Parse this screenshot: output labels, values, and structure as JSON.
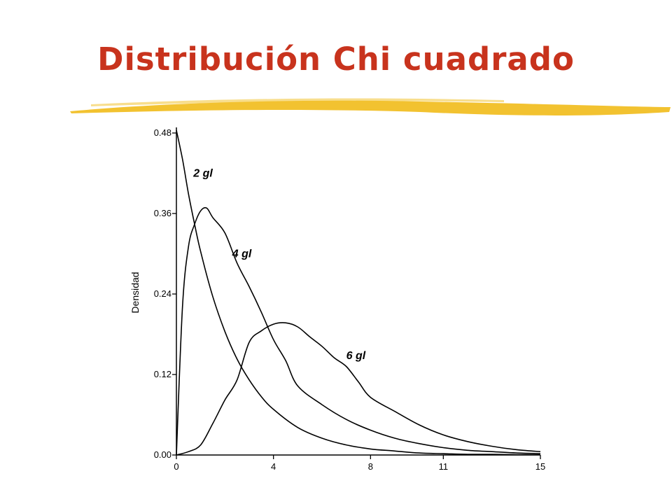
{
  "slide": {
    "title": "Distribución Chi cuadrado",
    "title_color": "#c8331d",
    "underline_color": "#f2c230"
  },
  "chart_data": {
    "type": "line",
    "title": "",
    "xlabel": "",
    "ylabel": "Densidad",
    "xlim": [
      0,
      15
    ],
    "ylim": [
      0,
      0.48
    ],
    "xticks": [
      "0",
      "4",
      "8",
      "11",
      "15"
    ],
    "yticks": [
      "0.00",
      "0.12",
      "0.24",
      "0.36",
      "0.48"
    ],
    "grid": false,
    "legend": "none",
    "series": [
      {
        "name": "2 gl",
        "x": [
          0,
          0.25,
          0.5,
          0.75,
          1,
          1.5,
          2,
          2.5,
          3,
          3.5,
          4,
          5,
          6,
          7,
          8,
          9,
          10,
          11,
          12,
          13,
          14,
          15
        ],
        "y": [
          0.5,
          0.441,
          0.389,
          0.344,
          0.303,
          0.236,
          0.184,
          0.143,
          0.112,
          0.087,
          0.068,
          0.041,
          0.025,
          0.015,
          0.009,
          0.006,
          0.003,
          0.002,
          0.001,
          0.001,
          0.0005,
          0.0003
        ]
      },
      {
        "name": "4 gl",
        "x": [
          0,
          0.25,
          0.5,
          0.75,
          1,
          1.25,
          1.5,
          2,
          2.5,
          3,
          3.5,
          4,
          4.5,
          5,
          6,
          7,
          8,
          9,
          10,
          11,
          12,
          13,
          14,
          15
        ],
        "y": [
          0,
          0.221,
          0.311,
          0.344,
          0.364,
          0.368,
          0.354,
          0.331,
          0.286,
          0.251,
          0.213,
          0.172,
          0.141,
          0.103,
          0.075,
          0.053,
          0.037,
          0.025,
          0.017,
          0.011,
          0.007,
          0.005,
          0.003,
          0.002
        ]
      },
      {
        "name": "6 gl",
        "x": [
          0,
          0.5,
          1,
          1.5,
          2,
          2.5,
          3,
          3.5,
          4,
          4.5,
          5,
          5.5,
          6,
          6.5,
          7,
          7.5,
          8,
          9,
          10,
          11,
          12,
          13,
          14,
          15
        ],
        "y": [
          0,
          0.005,
          0.015,
          0.047,
          0.082,
          0.112,
          0.168,
          0.185,
          0.195,
          0.197,
          0.191,
          0.176,
          0.162,
          0.145,
          0.132,
          0.109,
          0.086,
          0.065,
          0.045,
          0.03,
          0.02,
          0.013,
          0.008,
          0.005
        ]
      }
    ],
    "curve_labels": [
      "2 gl",
      "4 gl",
      "6 gl"
    ]
  }
}
